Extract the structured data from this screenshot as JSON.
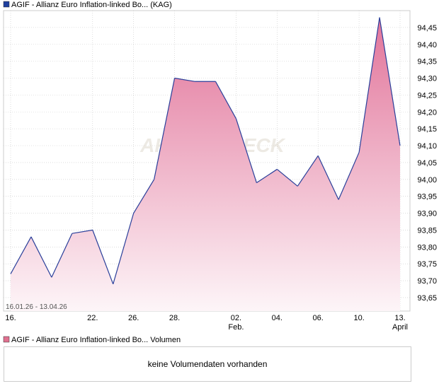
{
  "legend_price": {
    "label": "AGIF - Allianz Euro Inflation-linked Bo... (KAG)",
    "color": "#1f3f9e"
  },
  "legend_volume": {
    "label": "AGIF - Allianz Euro Inflation-linked Bo... Volumen",
    "color": "#e0708f"
  },
  "date_range": "16.01.26 - 13.04.26",
  "watermark": "AKTIENCHECK",
  "volume_message": "keine Volumendaten vorhanden",
  "colors": {
    "line": "#2a3f9a",
    "fill_top": "#e2749a",
    "fill_bottom": "#fdf5f8",
    "grid": "#c8c8c8"
  },
  "chart_data": {
    "type": "area",
    "title": "",
    "xlabel": "",
    "ylabel": "",
    "ylim": [
      93.61,
      94.5
    ],
    "grid": true,
    "y_axis_side": "right",
    "x": [
      "16.01.26",
      "19.01.26",
      "20.01.26",
      "21.01.26",
      "22.01.26",
      "23.01.26",
      "26.01.26",
      "27.01.26",
      "28.01.26",
      "29.01.26",
      "30.01.26",
      "02.02.26",
      "03.02.26",
      "04.02.26",
      "05.02.26",
      "06.02.26",
      "09.02.26",
      "10.02.26",
      "11.02.26",
      "13.04.26"
    ],
    "values": [
      93.72,
      93.83,
      93.71,
      93.84,
      93.85,
      93.69,
      93.9,
      94.0,
      94.3,
      94.29,
      94.29,
      94.18,
      93.99,
      94.03,
      93.98,
      94.07,
      93.94,
      94.08,
      94.48,
      94.1
    ],
    "y_ticks": [
      {
        "value": 93.65,
        "label": "93,65"
      },
      {
        "value": 93.7,
        "label": "93,70"
      },
      {
        "value": 93.75,
        "label": "93,75"
      },
      {
        "value": 93.8,
        "label": "93,80"
      },
      {
        "value": 93.85,
        "label": "93,85"
      },
      {
        "value": 93.9,
        "label": "93,90"
      },
      {
        "value": 93.95,
        "label": "93,95"
      },
      {
        "value": 94.0,
        "label": "94,00"
      },
      {
        "value": 94.05,
        "label": "94,05"
      },
      {
        "value": 94.1,
        "label": "94,10"
      },
      {
        "value": 94.15,
        "label": "94,15"
      },
      {
        "value": 94.2,
        "label": "94,20"
      },
      {
        "value": 94.25,
        "label": "94,25"
      },
      {
        "value": 94.3,
        "label": "94,30"
      },
      {
        "value": 94.35,
        "label": "94,35"
      },
      {
        "value": 94.4,
        "label": "94,40"
      },
      {
        "value": 94.45,
        "label": "94,45"
      }
    ],
    "x_ticks": [
      {
        "index": 0,
        "label": "16.",
        "sub": ""
      },
      {
        "index": 4,
        "label": "22.",
        "sub": ""
      },
      {
        "index": 6,
        "label": "26.",
        "sub": ""
      },
      {
        "index": 8,
        "label": "28.",
        "sub": ""
      },
      {
        "index": 11,
        "label": "02.",
        "sub": "Feb."
      },
      {
        "index": 13,
        "label": "04.",
        "sub": ""
      },
      {
        "index": 15,
        "label": "06.",
        "sub": ""
      },
      {
        "index": 17,
        "label": "10.",
        "sub": ""
      },
      {
        "index": 19,
        "label": "13.",
        "sub": "April"
      }
    ]
  }
}
